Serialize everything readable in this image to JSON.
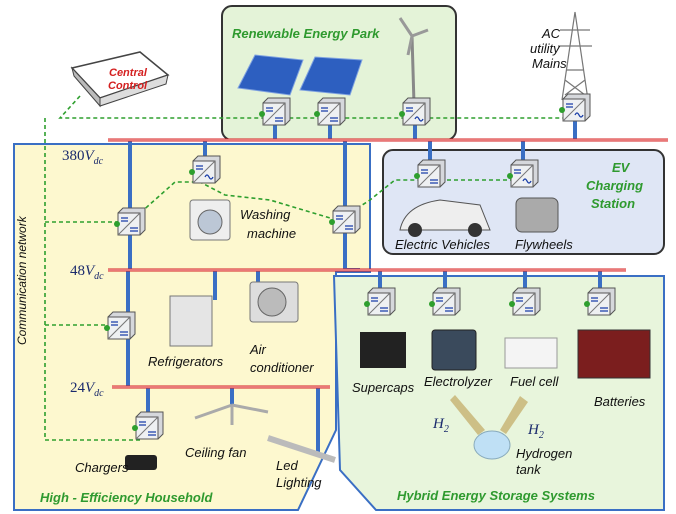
{
  "regions": {
    "renewable": "Renewable Energy Park",
    "ev": [
      "EV",
      "Charging",
      "Station"
    ],
    "household": "High - Efficiency Household",
    "storage": "Hybrid Energy Storage Systems"
  },
  "central_control": [
    "Central",
    "Control"
  ],
  "ac_mains": [
    "AC",
    "utility",
    "Mains"
  ],
  "communication_network": "Communication network",
  "buses": [
    {
      "voltage": "380",
      "unit": "V",
      "sub": "dc"
    },
    {
      "voltage": "48",
      "unit": "V",
      "sub": "dc"
    },
    {
      "voltage": "24",
      "unit": "V",
      "sub": "dc"
    }
  ],
  "devices": {
    "washing_machine": [
      "Washing",
      "machine"
    ],
    "electric_vehicles": "Electric Vehicles",
    "flywheels": "Flywheels",
    "refrigerators": "Refrigerators",
    "air_conditioner": [
      "Air",
      "conditioner"
    ],
    "supercaps": "Supercaps",
    "electrolyzer": "Electrolyzer",
    "fuel_cell": "Fuel cell",
    "batteries": "Batteries",
    "hydrogen_tank": [
      "Hydrogen",
      "tank"
    ],
    "ceiling_fan": "Ceiling fan",
    "chargers": "Chargers",
    "led_lighting": [
      "Led",
      "Lighting"
    ]
  },
  "h2": [
    {
      "main": "H",
      "sub": "2"
    },
    {
      "main": "H",
      "sub": "2"
    }
  ]
}
